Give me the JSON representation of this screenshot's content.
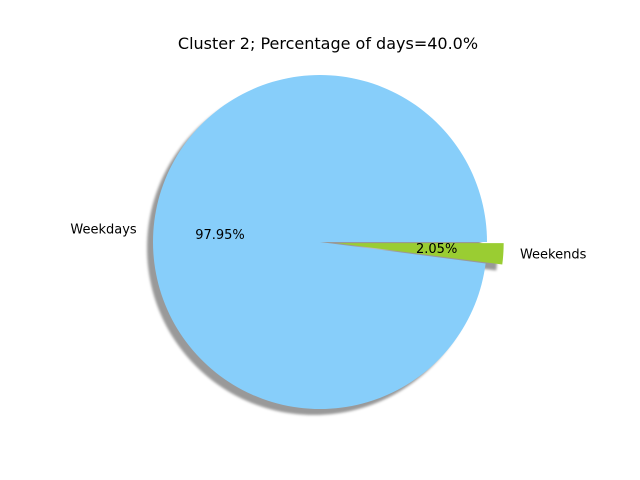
{
  "chart_data": {
    "type": "pie",
    "title": "Cluster 2; Percentage of days=40.0%",
    "categories": [
      "Weekdays",
      "Weekends"
    ],
    "values": [
      97.95,
      2.05
    ],
    "value_labels": [
      "97.95%",
      "2.05%"
    ],
    "colors": [
      "#87CEFA",
      "#9ACD32"
    ],
    "explode": [
      0,
      0.1
    ],
    "shadow": true,
    "start_angle_deg": 0,
    "counterclock": true,
    "legend": false
  }
}
